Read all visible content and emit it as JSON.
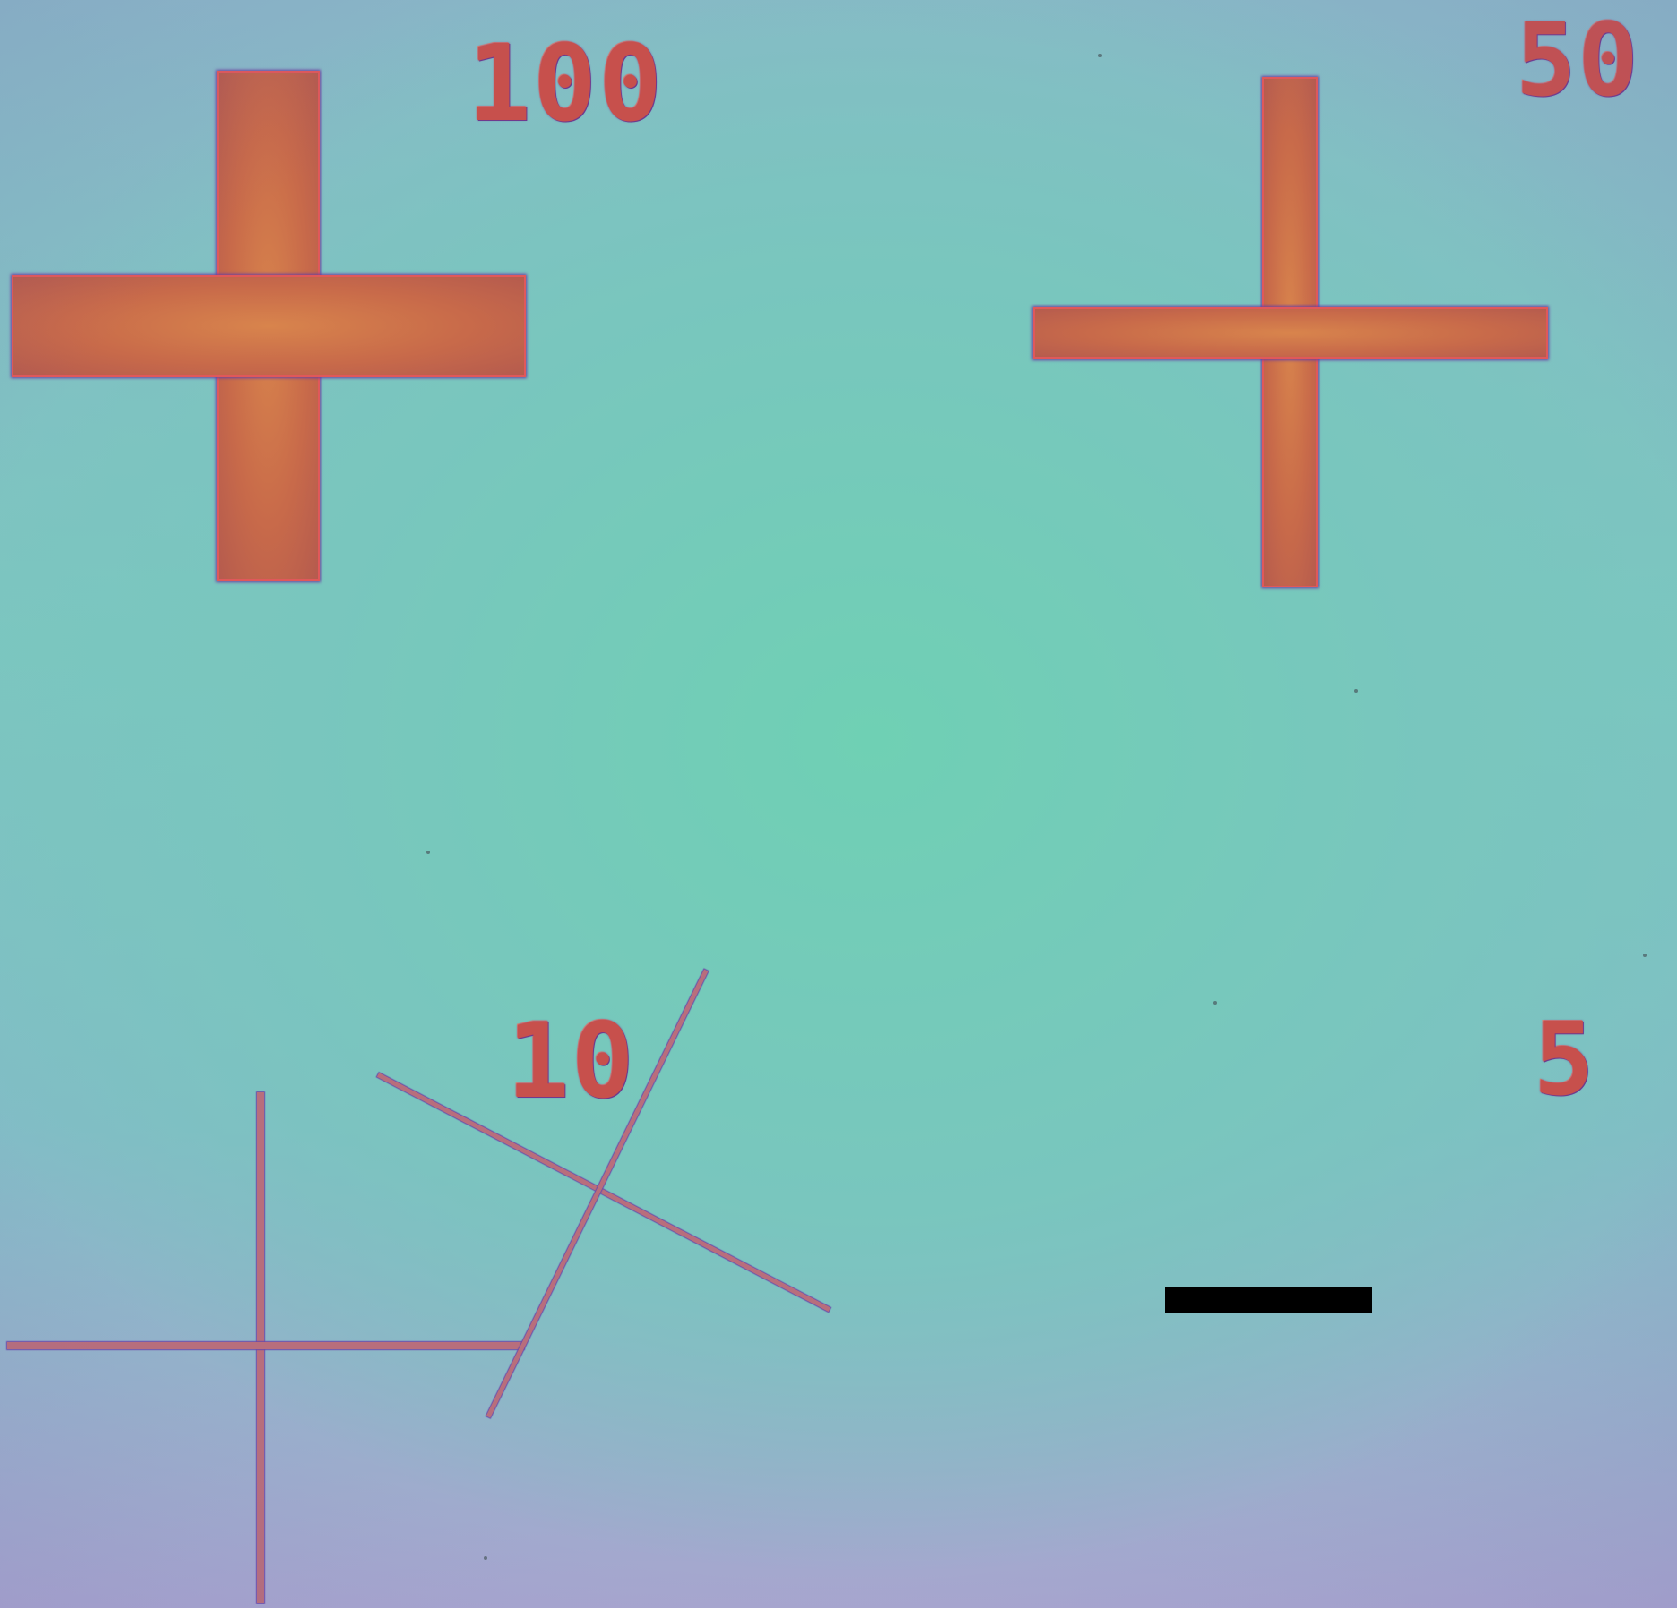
{
  "labels": {
    "top_left": "100",
    "top_right": "50",
    "bottom_left": "10",
    "bottom_right": "5"
  }
}
